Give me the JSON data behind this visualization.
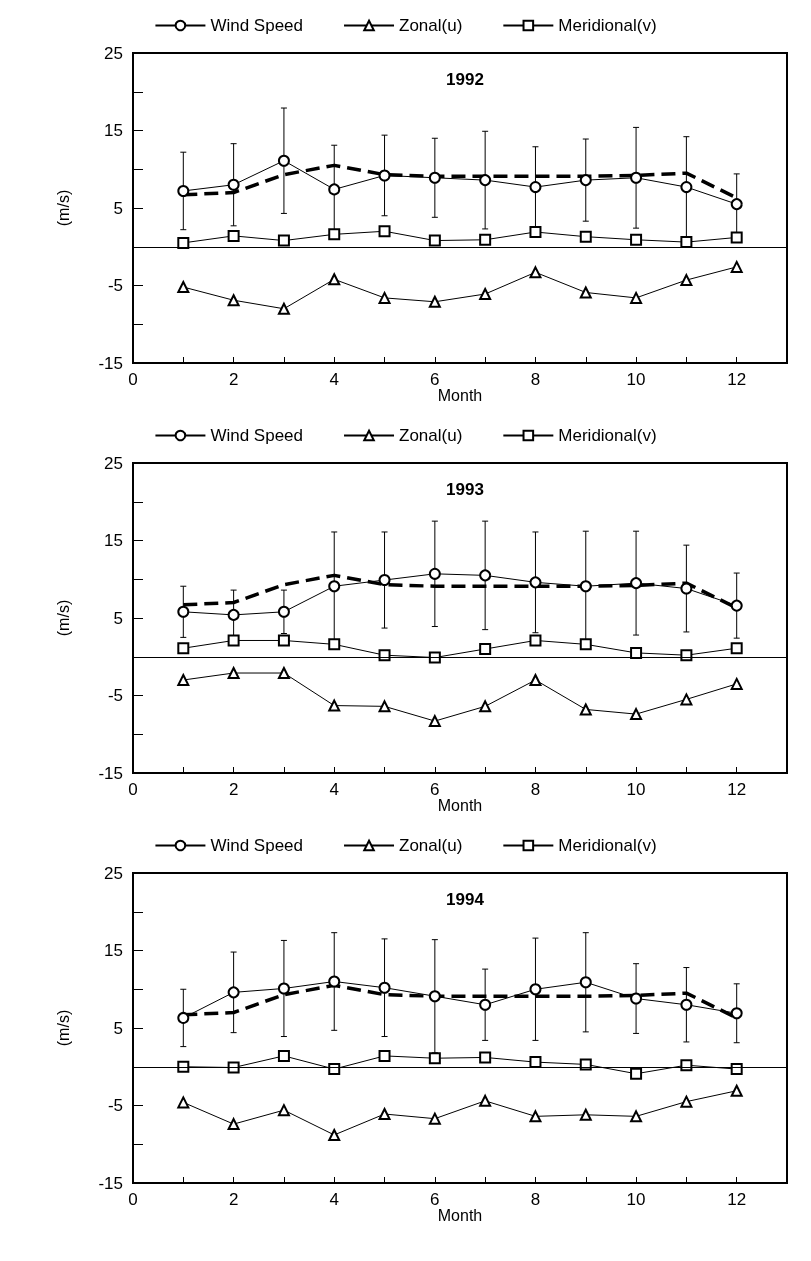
{
  "chart_data": [
    {
      "type": "line",
      "title": "1992",
      "xlabel": "Month",
      "ylabel": "(m/s)",
      "x": [
        1,
        2,
        3,
        4,
        5,
        6,
        7,
        8,
        9,
        10,
        11,
        12
      ],
      "xlim": [
        0,
        13
      ],
      "xticks": [
        0,
        {
          "value": 1,
          "label": null
        },
        2,
        {
          "value": 3,
          "label": null
        },
        4,
        {
          "value": 5,
          "label": null
        },
        6,
        {
          "value": 7,
          "label": null
        },
        8,
        {
          "value": 9,
          "label": null
        },
        10,
        {
          "value": 11,
          "label": null
        },
        12
      ],
      "ylim": [
        -15,
        25
      ],
      "yticks": [
        -15,
        {
          "value": -10,
          "label": null
        },
        -5,
        {
          "value": 0,
          "label": null
        },
        5,
        {
          "value": 10,
          "label": null
        },
        15,
        {
          "value": 20,
          "label": null
        },
        25
      ],
      "grid": false,
      "legend": "top",
      "ref_lines": [
        {
          "axis": "y",
          "value": 0
        }
      ],
      "series": [
        {
          "name": "Wind Speed",
          "color": "#000000",
          "marker": "circle",
          "line_style": "solid",
          "values": [
            7.2,
            8.0,
            11.1,
            7.4,
            9.2,
            8.9,
            8.6,
            7.7,
            8.6,
            8.9,
            7.7,
            5.5
          ],
          "errors": [
            5.0,
            5.3,
            6.8,
            5.7,
            5.2,
            5.1,
            6.3,
            5.2,
            5.3,
            6.5,
            6.5,
            3.9
          ]
        },
        {
          "name": "Zonal(u)",
          "color": "#000000",
          "marker": "triangle",
          "line_style": "solid",
          "values": [
            -5.2,
            -6.9,
            -8.0,
            -4.2,
            -6.6,
            -7.1,
            -6.1,
            -3.3,
            -5.9,
            -6.6,
            -4.3,
            -2.6
          ]
        },
        {
          "name": "Meridional(v)",
          "color": "#000000",
          "marker": "square",
          "line_style": "solid",
          "values": [
            0.5,
            1.4,
            0.8,
            1.6,
            2.0,
            0.8,
            0.9,
            1.9,
            1.3,
            0.9,
            0.6,
            1.2
          ]
        },
        {
          "color": "#000000",
          "marker": "none",
          "line_style": "dashed",
          "values": [
            6.7,
            7.0,
            9.3,
            10.5,
            9.3,
            9.1,
            9.1,
            9.1,
            9.1,
            9.2,
            9.5,
            6.3
          ]
        }
      ]
    },
    {
      "type": "line",
      "title": "1993",
      "xlabel": "Month",
      "ylabel": "(m/s)",
      "x": [
        1,
        2,
        3,
        4,
        5,
        6,
        7,
        8,
        9,
        10,
        11,
        12
      ],
      "xlim": [
        0,
        13
      ],
      "xticks": [
        0,
        {
          "value": 1,
          "label": null
        },
        2,
        {
          "value": 3,
          "label": null
        },
        4,
        {
          "value": 5,
          "label": null
        },
        6,
        {
          "value": 7,
          "label": null
        },
        8,
        {
          "value": 9,
          "label": null
        },
        10,
        {
          "value": 11,
          "label": null
        },
        12
      ],
      "ylim": [
        -15,
        25
      ],
      "yticks": [
        -15,
        {
          "value": -10,
          "label": null
        },
        -5,
        {
          "value": 0,
          "label": null
        },
        5,
        {
          "value": 10,
          "label": null
        },
        15,
        {
          "value": 20,
          "label": null
        },
        25
      ],
      "grid": false,
      "legend": "top",
      "ref_lines": [
        {
          "axis": "y",
          "value": 0
        }
      ],
      "series": [
        {
          "name": "Wind Speed",
          "color": "#000000",
          "marker": "circle",
          "line_style": "solid",
          "values": [
            5.8,
            5.4,
            5.8,
            9.1,
            9.9,
            10.7,
            10.5,
            9.6,
            9.1,
            9.5,
            8.8,
            6.6
          ],
          "errors": [
            3.3,
            3.2,
            2.8,
            7.0,
            6.2,
            6.8,
            7.0,
            6.5,
            7.1,
            6.7,
            5.6,
            4.2
          ]
        },
        {
          "name": "Zonal(u)",
          "color": "#000000",
          "marker": "triangle",
          "line_style": "solid",
          "values": [
            -3.0,
            -2.1,
            -2.1,
            -6.3,
            -6.4,
            -8.3,
            -6.4,
            -3.0,
            -6.8,
            -7.4,
            -5.5,
            -3.5
          ]
        },
        {
          "name": "Meridional(v)",
          "color": "#000000",
          "marker": "square",
          "line_style": "solid",
          "values": [
            1.1,
            2.1,
            2.1,
            1.6,
            0.2,
            -0.1,
            1.0,
            2.1,
            1.6,
            0.5,
            0.2,
            1.1
          ]
        },
        {
          "color": "#000000",
          "marker": "none",
          "line_style": "dashed",
          "values": [
            6.7,
            7.0,
            9.3,
            10.5,
            9.3,
            9.1,
            9.1,
            9.1,
            9.1,
            9.2,
            9.5,
            6.3
          ]
        }
      ]
    },
    {
      "type": "line",
      "title": "1994",
      "xlabel": "Month",
      "ylabel": "(m/s)",
      "x": [
        1,
        2,
        3,
        4,
        5,
        6,
        7,
        8,
        9,
        10,
        11,
        12
      ],
      "xlim": [
        0,
        13
      ],
      "xticks": [
        0,
        {
          "value": 1,
          "label": null
        },
        2,
        {
          "value": 3,
          "label": null
        },
        4,
        {
          "value": 5,
          "label": null
        },
        6,
        {
          "value": 7,
          "label": null
        },
        8,
        {
          "value": 9,
          "label": null
        },
        10,
        {
          "value": 11,
          "label": null
        },
        12
      ],
      "ylim": [
        -15,
        25
      ],
      "yticks": [
        -15,
        {
          "value": -10,
          "label": null
        },
        -5,
        {
          "value": 0,
          "label": null
        },
        5,
        {
          "value": 10,
          "label": null
        },
        15,
        {
          "value": 20,
          "label": null
        },
        25
      ],
      "grid": false,
      "legend": "top",
      "ref_lines": [
        {
          "axis": "y",
          "value": 0
        }
      ],
      "series": [
        {
          "name": "Wind Speed",
          "color": "#000000",
          "marker": "circle",
          "line_style": "solid",
          "values": [
            6.3,
            9.6,
            10.1,
            11.0,
            10.2,
            9.1,
            8.0,
            10.0,
            10.9,
            8.8,
            8.0,
            6.9
          ],
          "errors": [
            3.7,
            5.2,
            6.2,
            6.3,
            6.3,
            7.3,
            4.6,
            6.6,
            6.4,
            4.5,
            4.8,
            3.8
          ]
        },
        {
          "name": "Zonal(u)",
          "color": "#000000",
          "marker": "triangle",
          "line_style": "solid",
          "values": [
            -4.6,
            -7.4,
            -5.6,
            -8.8,
            -6.1,
            -6.7,
            -4.4,
            -6.4,
            -6.2,
            -6.4,
            -4.5,
            -3.1
          ]
        },
        {
          "name": "Meridional(v)",
          "color": "#000000",
          "marker": "square",
          "line_style": "solid",
          "values": [
            0.0,
            -0.1,
            1.4,
            -0.3,
            1.4,
            1.1,
            1.2,
            0.6,
            0.3,
            -0.9,
            0.2,
            -0.3
          ]
        },
        {
          "color": "#000000",
          "marker": "none",
          "line_style": "dashed",
          "values": [
            6.7,
            7.0,
            9.3,
            10.5,
            9.3,
            9.1,
            9.1,
            9.1,
            9.1,
            9.2,
            9.5,
            6.3
          ]
        }
      ]
    }
  ]
}
